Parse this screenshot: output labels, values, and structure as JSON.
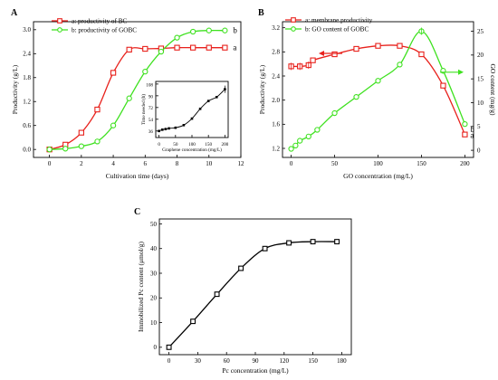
{
  "chart_data": [
    {
      "panel": "A",
      "type": "line",
      "xlabel": "Cultivation time (days)",
      "ylabel": "Productivity (g/L)",
      "xlim": [
        -1,
        12
      ],
      "ylim": [
        -0.2,
        3.2
      ],
      "xticks": [
        0,
        2,
        4,
        6,
        8,
        10,
        12
      ],
      "yticks": [
        0.0,
        0.6,
        1.2,
        1.8,
        2.4,
        3.0
      ],
      "legend": "top-left",
      "series": [
        {
          "name": "a: productivity of BC",
          "tag": "a",
          "color": "#e8211c",
          "marker": "square",
          "x": [
            0,
            1,
            2,
            3,
            4,
            5,
            6,
            7,
            8,
            9,
            10,
            11
          ],
          "y": [
            0.0,
            0.12,
            0.42,
            1.0,
            1.92,
            2.5,
            2.52,
            2.53,
            2.55,
            2.55,
            2.55,
            2.55
          ]
        },
        {
          "name": "b: productivity of GOBC",
          "tag": "b",
          "color": "#3ee11f",
          "marker": "circle",
          "x": [
            0,
            1,
            2,
            3,
            4,
            5,
            6,
            7,
            8,
            9,
            10,
            11
          ],
          "y": [
            0.0,
            0.02,
            0.08,
            0.2,
            0.6,
            1.28,
            1.95,
            2.45,
            2.8,
            2.95,
            2.98,
            2.98
          ]
        }
      ],
      "inset": {
        "type": "line",
        "xlabel": "Graphene concentration (mg/L)",
        "ylabel": "Time needed (h)",
        "xlim": [
          -10,
          210
        ],
        "ylim": [
          26,
          112
        ],
        "xticks": [
          0,
          50,
          100,
          150,
          200
        ],
        "yticks": [
          36,
          54,
          72,
          90,
          108
        ],
        "x": [
          0,
          10,
          20,
          30,
          50,
          75,
          100,
          125,
          150,
          175,
          200
        ],
        "y": [
          36,
          38,
          39,
          40,
          41,
          45,
          55,
          70,
          82,
          88,
          100
        ]
      }
    },
    {
      "panel": "B",
      "type": "line",
      "xlabel": "GO concentration (mg/L)",
      "ylabel": "Productivity (g/L)",
      "ylabel_right": "GO content (mg/g)",
      "xlim": [
        -10,
        210
      ],
      "ylim": [
        1.05,
        3.3
      ],
      "ylim_right": [
        -1.5,
        27
      ],
      "xticks": [
        0,
        50,
        100,
        150,
        200
      ],
      "yticks": [
        1.2,
        1.6,
        2.0,
        2.4,
        2.8,
        3.2
      ],
      "yticks_right": [
        0,
        5,
        10,
        15,
        20,
        25
      ],
      "legend": "top-left",
      "series": [
        {
          "name": "a: membrane productivity",
          "tag": "a",
          "color": "#e8211c",
          "marker": "square",
          "axis": "left",
          "x": [
            0,
            10,
            20,
            25,
            50,
            75,
            100,
            125,
            150,
            175,
            200
          ],
          "y": [
            2.56,
            2.56,
            2.58,
            2.66,
            2.76,
            2.85,
            2.9,
            2.9,
            2.76,
            2.24,
            1.43
          ]
        },
        {
          "name": "b: GO content of GOBC",
          "tag": "b",
          "color": "#3ee11f",
          "marker": "circle",
          "axis": "right",
          "x": [
            0,
            5,
            10,
            20,
            30,
            50,
            75,
            100,
            125,
            150,
            175,
            200
          ],
          "y": [
            0.3,
            1.0,
            2.0,
            2.9,
            4.3,
            7.8,
            11.2,
            14.6,
            18.0,
            25.0,
            16.7,
            5.5
          ]
        }
      ]
    },
    {
      "panel": "C",
      "type": "line",
      "xlabel": "Pc concentration (mg/L)",
      "ylabel": "Immobilized Pc content (μmol/g)",
      "xlim": [
        -10,
        190
      ],
      "ylim": [
        -3,
        52
      ],
      "xticks": [
        0,
        30,
        60,
        90,
        120,
        150,
        180
      ],
      "yticks": [
        0,
        10,
        20,
        30,
        40,
        50
      ],
      "series": [
        {
          "color": "#000000",
          "marker": "square-open",
          "x": [
            0,
            25,
            50,
            75,
            100,
            125,
            150,
            175
          ],
          "y": [
            0,
            10.5,
            21.5,
            32,
            40,
            42.3,
            42.8,
            42.8
          ]
        }
      ]
    }
  ]
}
